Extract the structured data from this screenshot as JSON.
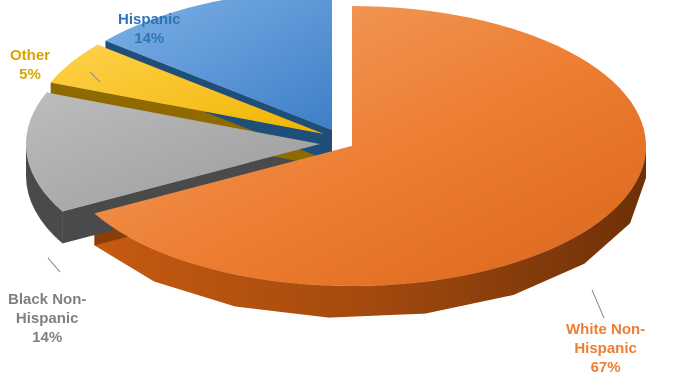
{
  "chart_data": {
    "type": "pie",
    "style": "3d-exploded",
    "slices": [
      {
        "id": "white",
        "label_lines": [
          "White Non-",
          "Hispanic"
        ],
        "value": 67,
        "value_label": "67%",
        "color": "#ED7D31",
        "side_color": "#8A3E0A",
        "label_color": "#ED7D31"
      },
      {
        "id": "black",
        "label_lines": [
          "Black Non-",
          "Hispanic"
        ],
        "value": 14,
        "value_label": "14%",
        "color": "#A5A5A5",
        "side_color": "#4A4A4A",
        "label_color": "#7F7F7F"
      },
      {
        "id": "other",
        "label_lines": [
          "Other"
        ],
        "value": 5,
        "value_label": "5%",
        "color": "#FFC000",
        "side_color": "#8F6A00",
        "label_color": "#D9A300"
      },
      {
        "id": "hispanic",
        "label_lines": [
          "Hispanic"
        ],
        "value": 14,
        "value_label": "14%",
        "color": "#4A90D9",
        "side_color": "#1F4E79",
        "label_color": "#2E75B6"
      }
    ],
    "legend": "none",
    "data_labels": "outside"
  }
}
